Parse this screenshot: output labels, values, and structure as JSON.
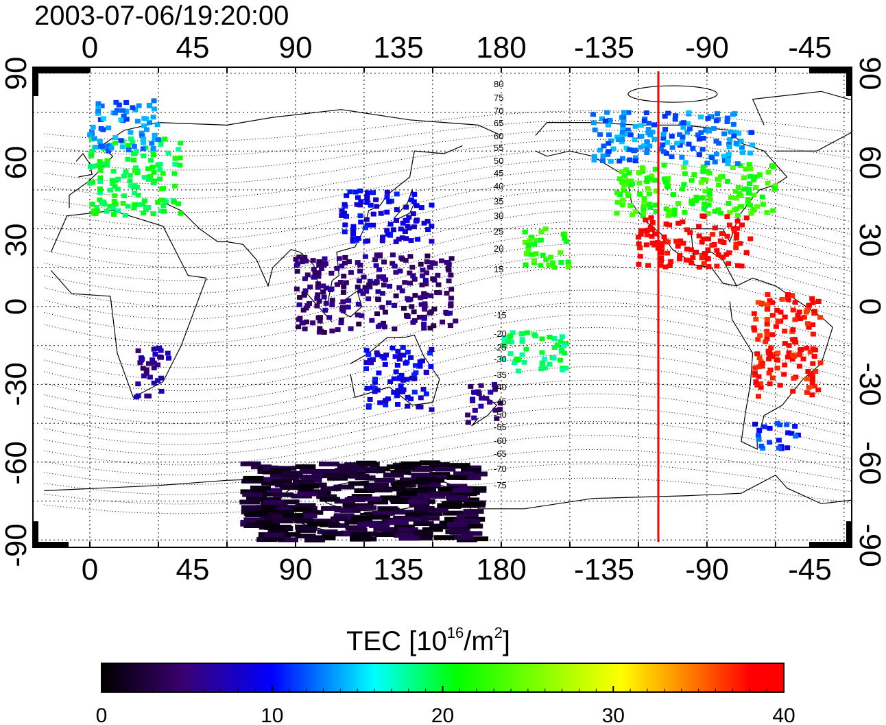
{
  "header": {
    "timestamp": "2003-07-06/19:20:00"
  },
  "map": {
    "top_lon_labels": [
      "0",
      "45",
      "90",
      "135",
      "180",
      "-135",
      "-90",
      "-45"
    ],
    "bottom_lon_labels": [
      "0",
      "45",
      "90",
      "135",
      "180",
      "-135",
      "-90",
      "-45"
    ],
    "left_lat_labels": [
      "90",
      "60",
      "30",
      "0",
      "-30",
      "-60",
      "-90"
    ],
    "right_lat_labels": [
      "90",
      "60",
      "30",
      "0",
      "-30",
      "-60",
      "-90"
    ],
    "mag_lat_north_labels": [
      "80",
      "75",
      "70",
      "65",
      "60",
      "55",
      "50",
      "45",
      "40",
      "35",
      "30",
      "25",
      "20",
      "15"
    ],
    "mag_lat_south_labels": [
      "-15",
      "-20",
      "-25",
      "-30",
      "-35",
      "-40",
      "-45",
      "-50",
      "-55",
      "-60",
      "-65",
      "-70",
      "-75"
    ],
    "terminator_color": "#ff0000"
  },
  "colorbar": {
    "label_prefix": "TEC  [10",
    "label_exp": "16",
    "label_mid": "/m",
    "label_exp2": "2",
    "label_suffix": "]",
    "tick_labels": [
      "0",
      "10",
      "20",
      "30",
      "40"
    ],
    "colors": [
      "#000000",
      "#3a0070",
      "#0000ff",
      "#00ffff",
      "#00ff00",
      "#ffff00",
      "#ff8000",
      "#ff0000"
    ]
  },
  "chart_data": {
    "type": "heatmap",
    "title": "2003-07-06/19:20:00",
    "xlabel": "",
    "ylabel": "",
    "xlim": [
      -20,
      330
    ],
    "ylim": [
      -90,
      90
    ],
    "value_range": [
      0,
      40
    ],
    "regions": [
      {
        "lon": [
          70,
          170
        ],
        "lat": [
          -90,
          -60
        ],
        "tec": 2
      },
      {
        "lon": [
          0,
          40
        ],
        "lat": [
          35,
          65
        ],
        "tec": 20
      },
      {
        "lon": [
          0,
          30
        ],
        "lat": [
          60,
          80
        ],
        "tec": 13
      },
      {
        "lon": [
          110,
          150
        ],
        "lat": [
          25,
          45
        ],
        "tec": 9
      },
      {
        "lon": [
          90,
          160
        ],
        "lat": [
          -10,
          20
        ],
        "tec": 5
      },
      {
        "lon": [
          120,
          150
        ],
        "lat": [
          -40,
          -15
        ],
        "tec": 9
      },
      {
        "lon": [
          165,
          180
        ],
        "lat": [
          -45,
          -30
        ],
        "tec": 6
      },
      {
        "lon": [
          20,
          35
        ],
        "lat": [
          -35,
          -15
        ],
        "tec": 6
      },
      {
        "lon": [
          230,
          300
        ],
        "lat": [
          35,
          55
        ],
        "tec": 22
      },
      {
        "lon": [
          220,
          290
        ],
        "lat": [
          55,
          75
        ],
        "tec": 13
      },
      {
        "lon": [
          240,
          290
        ],
        "lat": [
          15,
          35
        ],
        "tec": 39
      },
      {
        "lon": [
          290,
          320
        ],
        "lat": [
          -35,
          5
        ],
        "tec": 38
      },
      {
        "lon": [
          290,
          310
        ],
        "lat": [
          -55,
          -45
        ],
        "tec": 11
      },
      {
        "lon": [
          190,
          210
        ],
        "lat": [
          15,
          30
        ],
        "tec": 22
      },
      {
        "lon": [
          180,
          210
        ],
        "lat": [
          -25,
          -10
        ],
        "tec": 19
      }
    ]
  }
}
